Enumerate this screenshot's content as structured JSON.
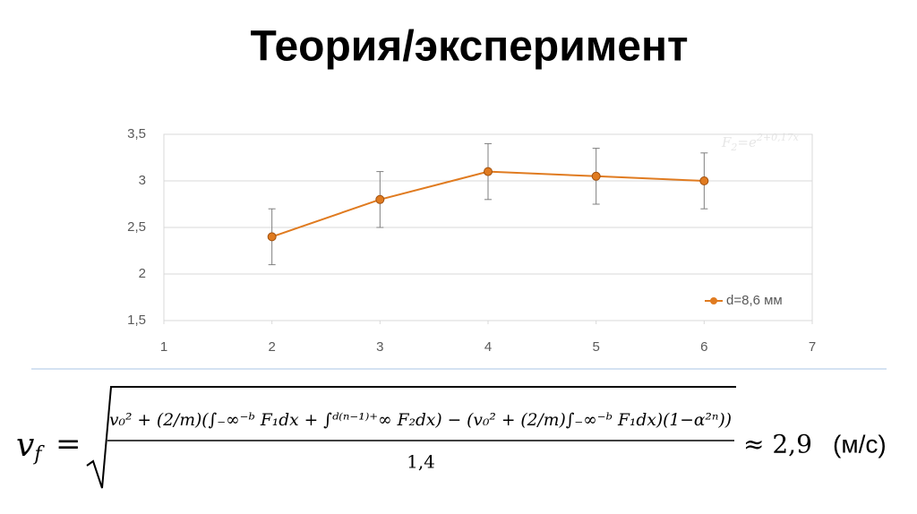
{
  "slide_title": "Теория/эксперимент",
  "chart_data": {
    "type": "line",
    "x": [
      2,
      3,
      4,
      5,
      6
    ],
    "series": [
      {
        "name": "d=8,6 мм",
        "color": "#e07b20",
        "values": [
          2.4,
          2.8,
          3.1,
          3.05,
          3.0
        ],
        "errors": [
          0.3,
          0.3,
          0.3,
          0.3,
          0.3
        ]
      }
    ],
    "xlim": [
      1,
      7
    ],
    "xticks": [
      1,
      2,
      3,
      4,
      5,
      6,
      7
    ],
    "ylim": [
      1.5,
      3.5
    ],
    "yticks": [
      {
        "value": 1.5,
        "label": "1,5"
      },
      2,
      {
        "value": 2.5,
        "label": "2,5"
      },
      3,
      {
        "value": 3.5,
        "label": "3,5"
      }
    ],
    "grid": true,
    "legend": "lower right",
    "annotation": {
      "base": "F",
      "sub": "2",
      "mid": "=e",
      "sup": "2+0,17x"
    }
  },
  "formula": {
    "lhs": "v",
    "lhs_sub": "f",
    "eq": "=",
    "numerator": "v₀² + (2/m)(∫₋∞⁻ᵇ F₁dx + ∫ᵈ⁽ⁿ⁻¹⁾⁺∞ F₂dx) − (v₀² + (2/m)∫₋∞⁻ᵇ F₁dx)(1−α²ⁿ))",
    "denominator": "1,4",
    "approx": "≈ 2,9",
    "unit": "(м/с)"
  }
}
